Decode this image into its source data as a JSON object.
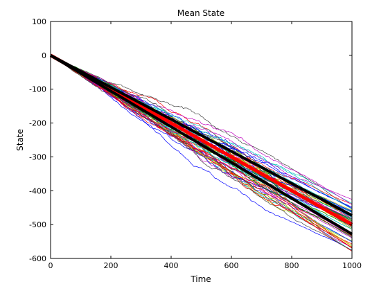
{
  "chart_data": {
    "type": "line",
    "title": "Mean State",
    "xlabel": "Time",
    "ylabel": "State",
    "xlim": [
      0,
      1000
    ],
    "ylim": [
      -600,
      100
    ],
    "xticks": [
      0,
      200,
      400,
      600,
      800,
      1000
    ],
    "yticks": [
      100,
      0,
      -100,
      -200,
      -300,
      -400,
      -500,
      -600
    ],
    "grid": false,
    "legend": "none",
    "random_walks": {
      "description_count": 60,
      "start": [
        0,
        0
      ],
      "end_y_range": [
        -580,
        -425
      ],
      "colors": [
        "#0000ff",
        "#008000",
        "#ff0000",
        "#00bfbf",
        "#bf00bf",
        "#bfbf00",
        "#404040"
      ]
    },
    "series": [
      {
        "role": "mean",
        "color": "#ff0000",
        "x": [
          0,
          1000
        ],
        "y": [
          0,
          -500
        ]
      },
      {
        "role": "upper-band",
        "color": "#000000",
        "x": [
          0,
          1000
        ],
        "y": [
          0,
          -473
        ]
      },
      {
        "role": "lower-band",
        "color": "#000000",
        "x": [
          0,
          1000
        ],
        "y": [
          0,
          -528
        ]
      }
    ]
  }
}
